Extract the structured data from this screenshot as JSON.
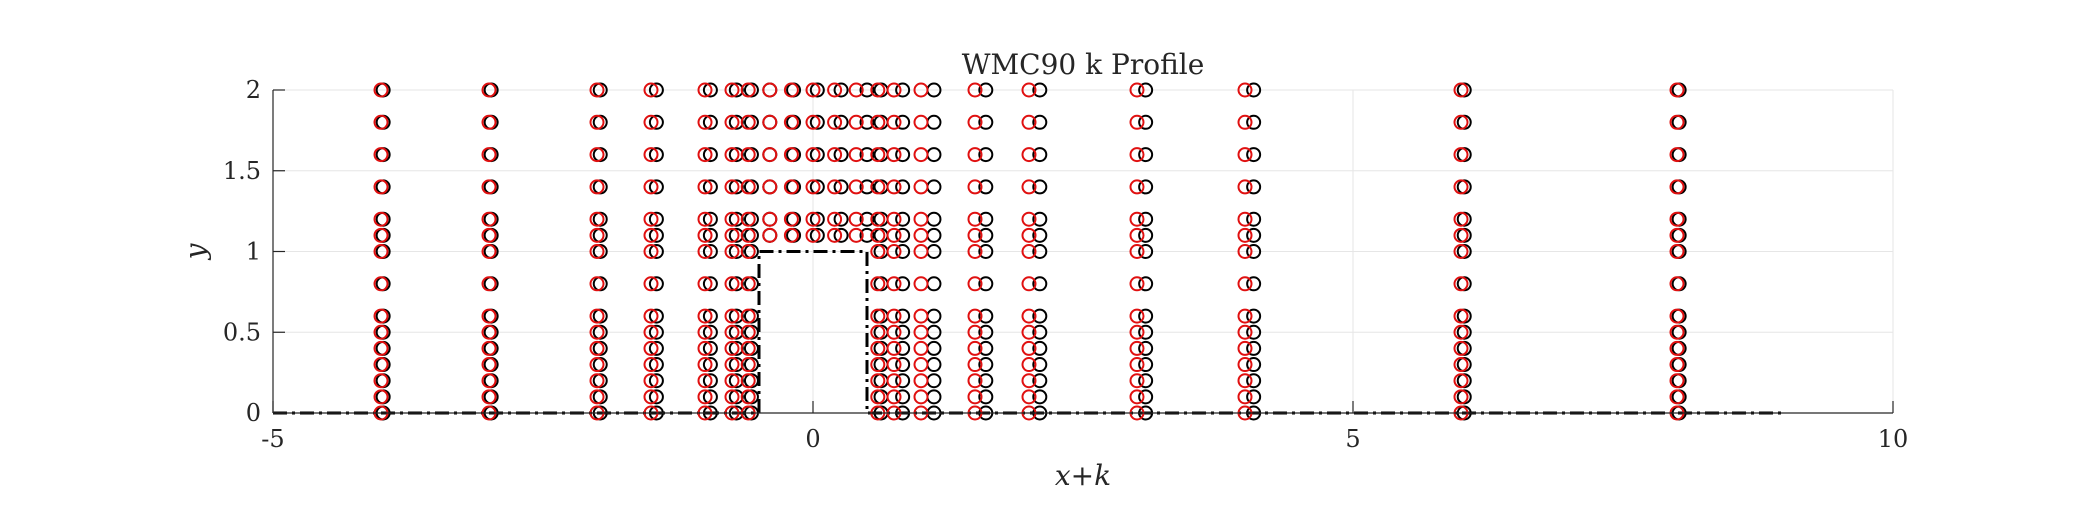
{
  "chart_data": {
    "type": "scatter",
    "title": "WMC90 k Profile",
    "xlabel": "x+k",
    "ylabel": "y",
    "xlim": [
      -5,
      10
    ],
    "ylim": [
      0,
      2
    ],
    "xticks": [
      -5,
      0,
      5,
      10
    ],
    "xtick_labels": [
      "-5",
      "0",
      "5",
      "10"
    ],
    "yticks": [
      0,
      0.5,
      1,
      1.5,
      2
    ],
    "ytick_labels": [
      "0",
      "0.5",
      "1",
      "1.5",
      "2"
    ],
    "grid": true,
    "legend": "none",
    "colors": {
      "series_black": "#000000",
      "series_red": "#e01010",
      "grid": "#e6e6e6",
      "axis": "#262626"
    },
    "geometry_outline": {
      "style": "dash-dot",
      "x": [
        -5,
        -0.5,
        -0.5,
        0.5,
        0.5,
        9
      ],
      "y": [
        0,
        0,
        1,
        1,
        0,
        0
      ]
    },
    "y_levels_full": [
      0,
      0.1,
      0.2,
      0.3,
      0.4,
      0.5,
      0.6,
      0.8,
      1.0,
      1.1,
      1.2,
      1.4,
      1.6,
      1.8,
      2.0
    ],
    "y_levels_top": [
      1.1,
      1.2,
      1.4,
      1.6,
      1.8,
      2.0
    ],
    "stations_full": [
      -4,
      -3,
      -2,
      -1.5,
      -1,
      -0.75,
      -0.6,
      0.6,
      0.75,
      1,
      1.5,
      2,
      3,
      4,
      6,
      8
    ],
    "stations_top": [
      -0.4,
      -0.2,
      0,
      0.2,
      0.4
    ],
    "series": [
      {
        "color": "#000000",
        "x_offsets_full": [
          0.02,
          0.02,
          0.03,
          0.05,
          0.05,
          0.04,
          0.03,
          0.03,
          0.08,
          0.12,
          0.1,
          0.1,
          0.08,
          0.08,
          0.03,
          0.02
        ],
        "x_offsets_top": [
          0.0,
          0.02,
          0.04,
          0.06,
          0.1
        ]
      },
      {
        "color": "#e01010",
        "x_offsets_full": [
          0,
          0,
          0,
          0,
          0,
          0,
          0,
          0,
          0,
          0,
          0,
          0,
          0,
          0,
          0,
          0
        ],
        "x_offsets_top": [
          0,
          0,
          0,
          0,
          0
        ]
      }
    ]
  }
}
